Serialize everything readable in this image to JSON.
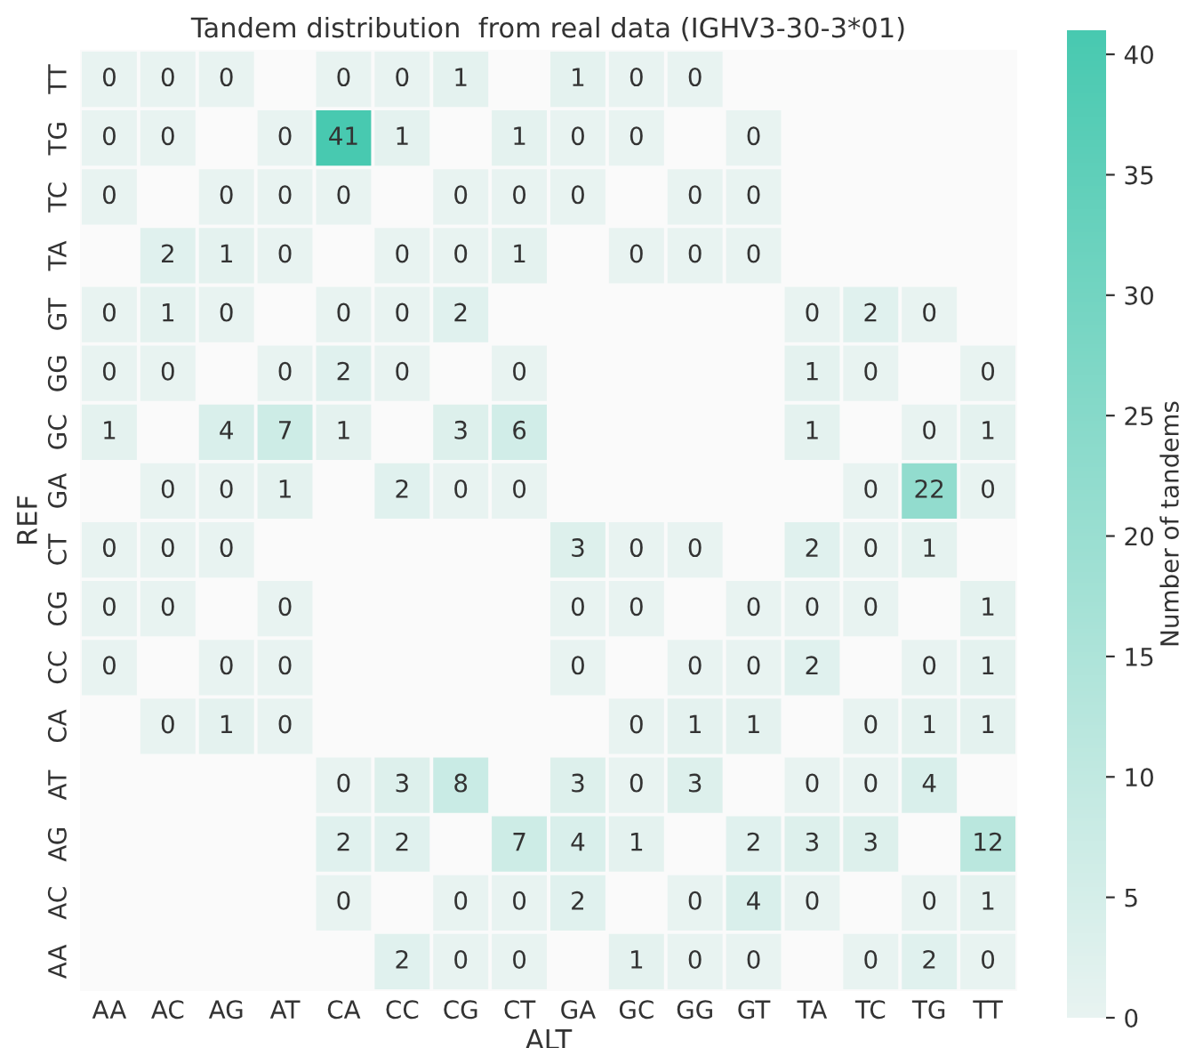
{
  "chart_data": {
    "type": "heatmap",
    "title": "Tandem distribution  from real data (IGHV3-30-3*01)",
    "xlabel": "ALT",
    "ylabel": "REF",
    "clabel": "Number of tandems",
    "categories": [
      "AA",
      "AC",
      "AG",
      "AT",
      "CA",
      "CC",
      "CG",
      "CT",
      "GA",
      "GC",
      "GG",
      "GT",
      "TA",
      "TC",
      "TG",
      "TT"
    ],
    "y_categories": [
      "TT",
      "TG",
      "TC",
      "TA",
      "GT",
      "GG",
      "GC",
      "GA",
      "CT",
      "CG",
      "CC",
      "CA",
      "AT",
      "AG",
      "AC",
      "AA"
    ],
    "cells": [
      [
        0,
        0,
        0,
        null,
        0,
        0,
        1,
        null,
        1,
        0,
        0,
        null,
        null,
        null,
        null,
        null
      ],
      [
        0,
        0,
        null,
        0,
        41,
        1,
        null,
        1,
        0,
        0,
        null,
        0,
        null,
        null,
        null,
        null
      ],
      [
        0,
        null,
        0,
        0,
        0,
        null,
        0,
        0,
        0,
        null,
        0,
        0,
        null,
        null,
        null,
        null
      ],
      [
        null,
        2,
        1,
        0,
        null,
        0,
        0,
        1,
        null,
        0,
        0,
        0,
        null,
        null,
        null,
        null
      ],
      [
        0,
        1,
        0,
        null,
        0,
        0,
        2,
        null,
        null,
        null,
        null,
        null,
        0,
        2,
        0,
        null
      ],
      [
        0,
        0,
        null,
        0,
        2,
        0,
        null,
        0,
        null,
        null,
        null,
        null,
        1,
        0,
        null,
        0
      ],
      [
        1,
        null,
        4,
        7,
        1,
        null,
        3,
        6,
        null,
        null,
        null,
        null,
        1,
        null,
        0,
        1
      ],
      [
        null,
        0,
        0,
        1,
        null,
        2,
        0,
        0,
        null,
        null,
        null,
        null,
        null,
        0,
        22,
        0
      ],
      [
        0,
        0,
        0,
        null,
        null,
        null,
        null,
        null,
        3,
        0,
        0,
        null,
        2,
        0,
        1,
        null
      ],
      [
        0,
        0,
        null,
        0,
        null,
        null,
        null,
        null,
        0,
        0,
        null,
        0,
        0,
        0,
        null,
        1
      ],
      [
        0,
        null,
        0,
        0,
        null,
        null,
        null,
        null,
        0,
        null,
        0,
        0,
        2,
        null,
        0,
        1
      ],
      [
        null,
        0,
        1,
        0,
        null,
        null,
        null,
        null,
        null,
        0,
        1,
        1,
        null,
        0,
        1,
        1
      ],
      [
        null,
        null,
        null,
        null,
        0,
        3,
        8,
        null,
        3,
        0,
        3,
        null,
        0,
        0,
        4,
        null
      ],
      [
        null,
        null,
        null,
        null,
        2,
        2,
        null,
        7,
        4,
        1,
        null,
        2,
        3,
        3,
        null,
        12
      ],
      [
        null,
        null,
        null,
        null,
        0,
        null,
        0,
        0,
        2,
        null,
        0,
        4,
        0,
        null,
        0,
        1
      ],
      [
        null,
        null,
        null,
        null,
        null,
        2,
        0,
        0,
        null,
        1,
        0,
        0,
        null,
        0,
        2,
        0
      ]
    ],
    "clim": [
      0,
      41
    ],
    "cticks": [
      0,
      5,
      10,
      15,
      20,
      25,
      30,
      35,
      40
    ],
    "colors": [
      "#e8f3f1",
      "#48c9b0"
    ],
    "data_labels": true
  }
}
